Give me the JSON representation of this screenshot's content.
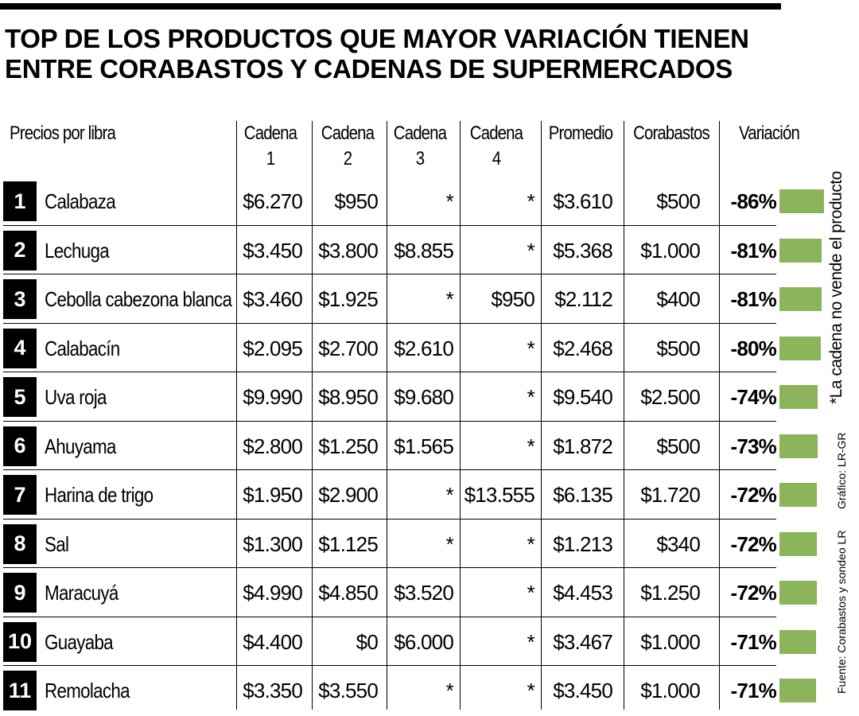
{
  "title_lines": [
    "TOP DE LOS PRODUCTOS QUE MAYOR VARIACIÓN TIENEN",
    "ENTRE CORABASTOS Y CADENAS DE SUPERMERCADOS"
  ],
  "headers": {
    "product": "Precios por libra",
    "cadena1": [
      "Cadena",
      "1"
    ],
    "cadena2": [
      "Cadena",
      "2"
    ],
    "cadena3": [
      "Cadena",
      "3"
    ],
    "cadena4": [
      "Cadena",
      "4"
    ],
    "promedio": "Promedio",
    "corabastos": "Corabastos",
    "variacion": "Variación"
  },
  "note": "*La cadena no vende el producto",
  "credit_graphic": "Gráfico: LR-GR",
  "credit_source": "Fuente: Corabastos y sondeo LR",
  "colors": {
    "bar": "#8cb45a",
    "rank_box": "#000000"
  },
  "chart_data": {
    "type": "table",
    "columns": [
      "#",
      "Precios por libra",
      "Cadena 1",
      "Cadena 2",
      "Cadena 3",
      "Cadena 4",
      "Promedio",
      "Corabastos",
      "Variación"
    ],
    "rows": [
      {
        "rank": "1",
        "product": "Calabaza",
        "c1": "$6.270",
        "c2": "$950",
        "c3": "*",
        "c4": "*",
        "promedio": "$3.610",
        "corabastos": "$500",
        "variacion": "-86%",
        "variacion_value": -86
      },
      {
        "rank": "2",
        "product": "Lechuga",
        "c1": "$3.450",
        "c2": "$3.800",
        "c3": "$8.855",
        "c4": "*",
        "promedio": "$5.368",
        "corabastos": "$1.000",
        "variacion": "-81%",
        "variacion_value": -81
      },
      {
        "rank": "3",
        "product": "Cebolla cabezona blanca",
        "c1": "$3.460",
        "c2": "$1.925",
        "c3": "*",
        "c4": "$950",
        "promedio": "$2.112",
        "corabastos": "$400",
        "variacion": "-81%",
        "variacion_value": -81
      },
      {
        "rank": "4",
        "product": "Calabacín",
        "c1": "$2.095",
        "c2": "$2.700",
        "c3": "$2.610",
        "c4": "*",
        "promedio": "$2.468",
        "corabastos": "$500",
        "variacion": "-80%",
        "variacion_value": -80
      },
      {
        "rank": "5",
        "product": "Uva roja",
        "c1": "$9.990",
        "c2": "$8.950",
        "c3": "$9.680",
        "c4": "*",
        "promedio": "$9.540",
        "corabastos": "$2.500",
        "variacion": "-74%",
        "variacion_value": -74
      },
      {
        "rank": "6",
        "product": "Ahuyama",
        "c1": "$2.800",
        "c2": "$1.250",
        "c3": "$1.565",
        "c4": "*",
        "promedio": "$1.872",
        "corabastos": "$500",
        "variacion": "-73%",
        "variacion_value": -73
      },
      {
        "rank": "7",
        "product": "Harina de trigo",
        "c1": "$1.950",
        "c2": "$2.900",
        "c3": "*",
        "c4": "$13.555",
        "promedio": "$6.135",
        "corabastos": "$1.720",
        "variacion": "-72%",
        "variacion_value": -72
      },
      {
        "rank": "8",
        "product": "Sal",
        "c1": "$1.300",
        "c2": "$1.125",
        "c3": "*",
        "c4": "*",
        "promedio": "$1.213",
        "corabastos": "$340",
        "variacion": "-72%",
        "variacion_value": -72
      },
      {
        "rank": "9",
        "product": "Maracuyá",
        "c1": "$4.990",
        "c2": "$4.850",
        "c3": "$3.520",
        "c4": "*",
        "promedio": "$4.453",
        "corabastos": "$1.250",
        "variacion": "-72%",
        "variacion_value": -72
      },
      {
        "rank": "10",
        "product": "Guayaba",
        "c1": "$4.400",
        "c2": "$0",
        "c3": "$6.000",
        "c4": "*",
        "promedio": "$3.467",
        "corabastos": "$1.000",
        "variacion": "-71%",
        "variacion_value": -71
      },
      {
        "rank": "11",
        "product": "Remolacha",
        "c1": "$3.350",
        "c2": "$3.550",
        "c3": "*",
        "c4": "*",
        "promedio": "$3.450",
        "corabastos": "$1.000",
        "variacion": "-71%",
        "variacion_value": -71
      }
    ]
  }
}
